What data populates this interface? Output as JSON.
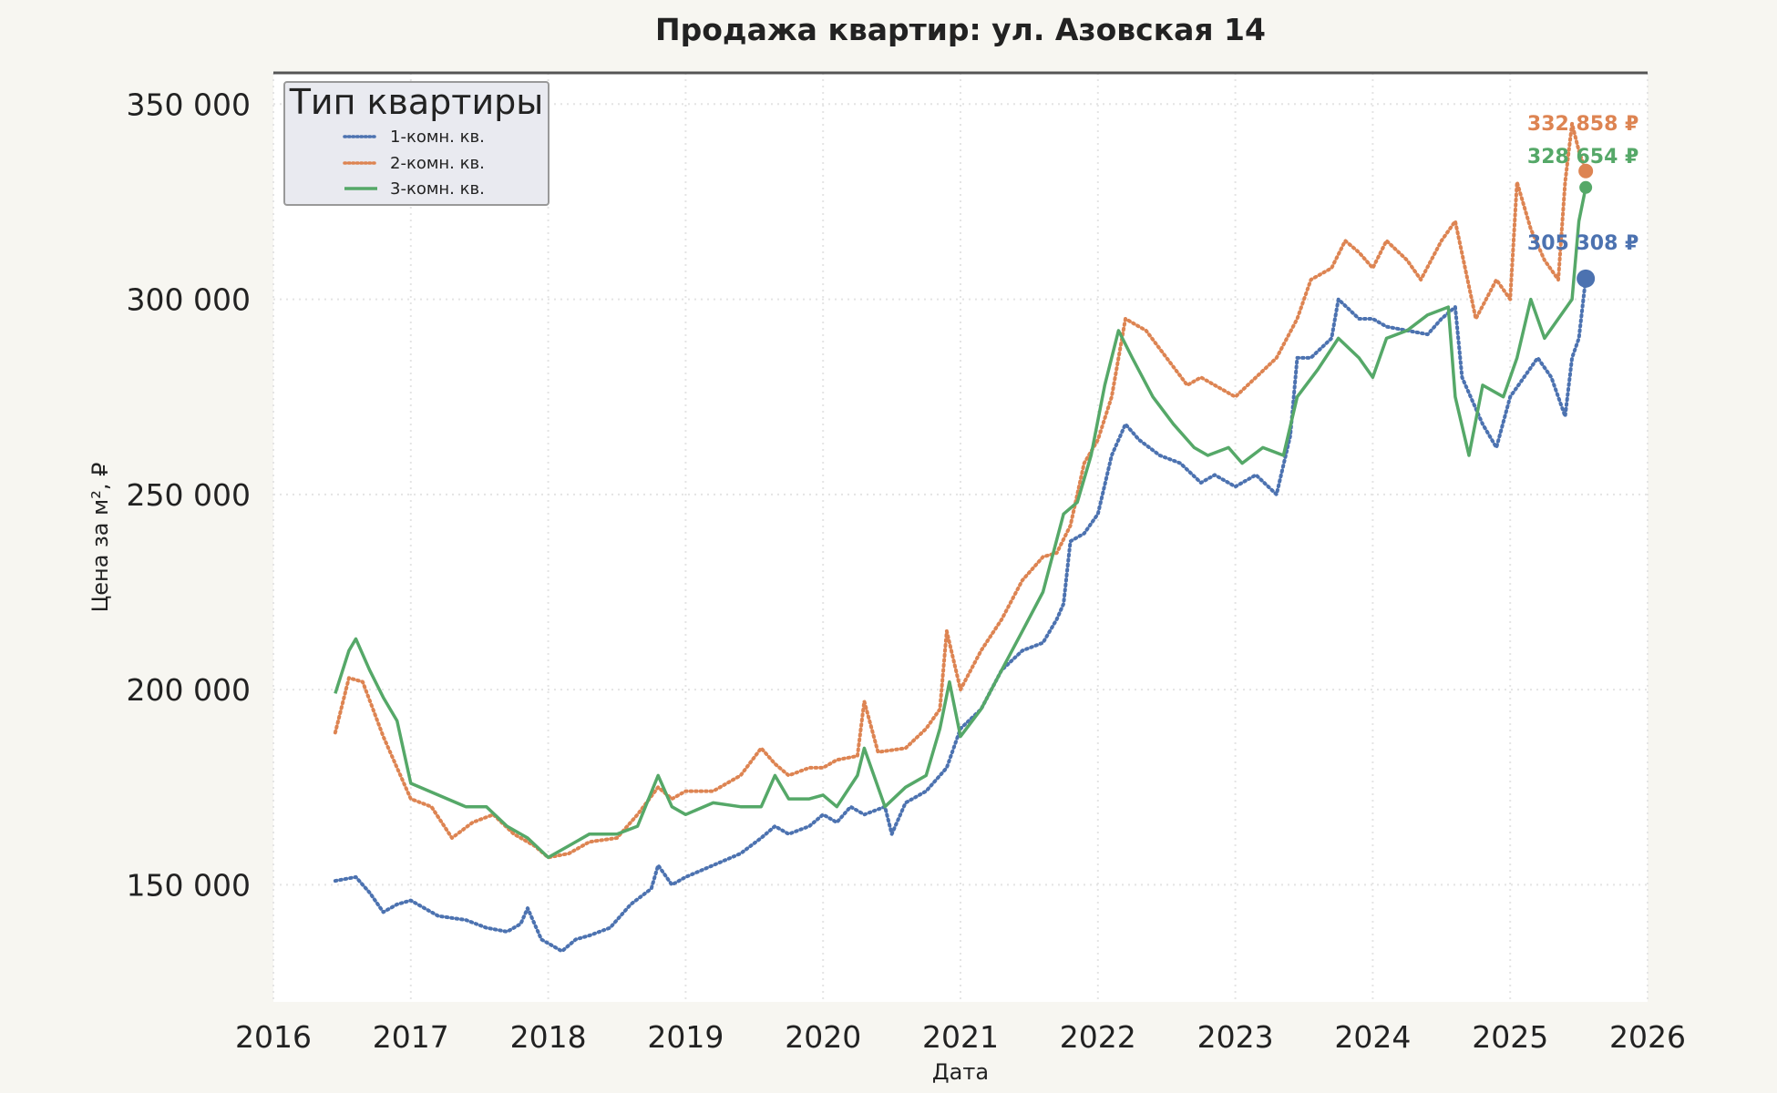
{
  "colors": {
    "background": "#f7f6f1",
    "plot_background": "#ffffff",
    "grid": "#e4e4e4",
    "top_rule": "#555555",
    "series_1": "#4c72b0",
    "series_2": "#dd8452",
    "series_3": "#55a868",
    "legend_bg": "#e9eaf0",
    "legend_border": "#999999"
  },
  "chart_data": {
    "type": "line",
    "title": "Продажа квартир: ул. Азовская 14",
    "xlabel": "Дата",
    "ylabel": "Цена за м², ₽",
    "xlim": [
      2016,
      2026
    ],
    "ylim": [
      120000,
      358000
    ],
    "x_ticks": [
      2016,
      2017,
      2018,
      2019,
      2020,
      2021,
      2022,
      2023,
      2024,
      2025,
      2026
    ],
    "x_tick_labels": [
      "2016",
      "2017",
      "2018",
      "2019",
      "2020",
      "2021",
      "2022",
      "2023",
      "2024",
      "2025",
      "2026"
    ],
    "y_ticks": [
      150000,
      200000,
      250000,
      300000,
      350000
    ],
    "y_tick_labels": [
      "150 000",
      "200 000",
      "250 000",
      "300 000",
      "350 000"
    ],
    "grid": true,
    "legend": {
      "title": "Тип квартиры",
      "placement": "top-left"
    },
    "series": [
      {
        "name": "1-комн. кв.",
        "style": "dotted",
        "color": "#4c72b0",
        "x": [
          2016.45,
          2016.6,
          2016.7,
          2016.8,
          2016.9,
          2017.0,
          2017.2,
          2017.4,
          2017.55,
          2017.7,
          2017.8,
          2017.85,
          2017.95,
          2018.1,
          2018.2,
          2018.3,
          2018.45,
          2018.6,
          2018.75,
          2018.8,
          2018.9,
          2019.0,
          2019.2,
          2019.4,
          2019.55,
          2019.65,
          2019.75,
          2019.9,
          2020.0,
          2020.1,
          2020.2,
          2020.3,
          2020.45,
          2020.5,
          2020.6,
          2020.75,
          2020.9,
          2021.0,
          2021.15,
          2021.3,
          2021.45,
          2021.6,
          2021.7,
          2021.75,
          2021.8,
          2021.9,
          2022.0,
          2022.1,
          2022.2,
          2022.3,
          2022.45,
          2022.6,
          2022.75,
          2022.85,
          2023.0,
          2023.15,
          2023.3,
          2023.4,
          2023.45,
          2023.55,
          2023.7,
          2023.75,
          2023.9,
          2024.0,
          2024.1,
          2024.25,
          2024.4,
          2024.5,
          2024.6,
          2024.65,
          2024.8,
          2024.9,
          2025.0,
          2025.1,
          2025.2,
          2025.3,
          2025.4,
          2025.45,
          2025.5,
          2025.55
        ],
        "y": [
          151000,
          152000,
          148000,
          143000,
          145000,
          146000,
          142000,
          141000,
          139000,
          138000,
          140000,
          144000,
          136000,
          133000,
          136000,
          137000,
          139000,
          145000,
          149000,
          155000,
          150000,
          152000,
          155000,
          158000,
          162000,
          165000,
          163000,
          165000,
          168000,
          166000,
          170000,
          168000,
          170000,
          163000,
          171000,
          174000,
          180000,
          190000,
          195000,
          205000,
          210000,
          212000,
          218000,
          222000,
          238000,
          240000,
          245000,
          260000,
          268000,
          264000,
          260000,
          258000,
          253000,
          255000,
          252000,
          255000,
          250000,
          265000,
          285000,
          285000,
          290000,
          300000,
          295000,
          295000,
          293000,
          292000,
          291000,
          295000,
          298000,
          280000,
          268000,
          262000,
          275000,
          280000,
          285000,
          280000,
          270000,
          285000,
          290000,
          305308
        ]
      },
      {
        "name": "2-комн. кв.",
        "style": "dotted",
        "color": "#dd8452",
        "x": [
          2016.45,
          2016.55,
          2016.65,
          2016.8,
          2016.9,
          2017.0,
          2017.15,
          2017.3,
          2017.45,
          2017.6,
          2017.75,
          2017.9,
          2018.0,
          2018.15,
          2018.3,
          2018.5,
          2018.65,
          2018.8,
          2018.9,
          2019.0,
          2019.2,
          2019.4,
          2019.55,
          2019.65,
          2019.75,
          2019.9,
          2020.0,
          2020.1,
          2020.25,
          2020.3,
          2020.4,
          2020.6,
          2020.75,
          2020.85,
          2020.9,
          2021.0,
          2021.15,
          2021.3,
          2021.45,
          2021.6,
          2021.7,
          2021.8,
          2021.9,
          2022.0,
          2022.1,
          2022.2,
          2022.35,
          2022.5,
          2022.65,
          2022.75,
          2022.85,
          2023.0,
          2023.15,
          2023.3,
          2023.45,
          2023.55,
          2023.7,
          2023.8,
          2023.9,
          2024.0,
          2024.1,
          2024.25,
          2024.35,
          2024.5,
          2024.6,
          2024.75,
          2024.9,
          2025.0,
          2025.05,
          2025.15,
          2025.25,
          2025.35,
          2025.4,
          2025.45,
          2025.5,
          2025.55
        ],
        "y": [
          189000,
          203000,
          202000,
          188000,
          180000,
          172000,
          170000,
          162000,
          166000,
          168000,
          163000,
          160000,
          157000,
          158000,
          161000,
          162000,
          168000,
          175000,
          172000,
          174000,
          174000,
          178000,
          185000,
          181000,
          178000,
          180000,
          180000,
          182000,
          183000,
          197000,
          184000,
          185000,
          190000,
          195000,
          215000,
          200000,
          210000,
          218000,
          228000,
          234000,
          235000,
          242000,
          258000,
          264000,
          275000,
          295000,
          292000,
          285000,
          278000,
          280000,
          278000,
          275000,
          280000,
          285000,
          295000,
          305000,
          308000,
          315000,
          312000,
          308000,
          315000,
          310000,
          305000,
          315000,
          320000,
          295000,
          305000,
          300000,
          330000,
          318000,
          310000,
          305000,
          330000,
          345000,
          338000,
          332858
        ]
      },
      {
        "name": "3-комн. кв.",
        "style": "solid",
        "color": "#55a868",
        "x": [
          2016.45,
          2016.55,
          2016.6,
          2016.7,
          2016.8,
          2016.9,
          2017.0,
          2017.2,
          2017.4,
          2017.55,
          2017.7,
          2017.85,
          2018.0,
          2018.15,
          2018.3,
          2018.5,
          2018.65,
          2018.8,
          2018.9,
          2019.0,
          2019.2,
          2019.4,
          2019.55,
          2019.65,
          2019.75,
          2019.9,
          2020.0,
          2020.1,
          2020.25,
          2020.3,
          2020.45,
          2020.6,
          2020.75,
          2020.85,
          2020.92,
          2021.0,
          2021.15,
          2021.3,
          2021.45,
          2021.6,
          2021.75,
          2021.85,
          2021.95,
          2022.05,
          2022.15,
          2022.25,
          2022.4,
          2022.55,
          2022.7,
          2022.8,
          2022.95,
          2023.05,
          2023.2,
          2023.35,
          2023.45,
          2023.6,
          2023.75,
          2023.9,
          2024.0,
          2024.1,
          2024.25,
          2024.4,
          2024.55,
          2024.6,
          2024.7,
          2024.8,
          2024.95,
          2025.05,
          2025.15,
          2025.25,
          2025.35,
          2025.45,
          2025.5,
          2025.55
        ],
        "y": [
          199000,
          210000,
          213000,
          205000,
          198000,
          192000,
          176000,
          173000,
          170000,
          170000,
          165000,
          162000,
          157000,
          160000,
          163000,
          163000,
          165000,
          178000,
          170000,
          168000,
          171000,
          170000,
          170000,
          178000,
          172000,
          172000,
          173000,
          170000,
          178000,
          185000,
          170000,
          175000,
          178000,
          190000,
          202000,
          188000,
          195000,
          205000,
          215000,
          225000,
          245000,
          248000,
          260000,
          278000,
          292000,
          285000,
          275000,
          268000,
          262000,
          260000,
          262000,
          258000,
          262000,
          260000,
          275000,
          282000,
          290000,
          285000,
          280000,
          290000,
          292000,
          296000,
          298000,
          275000,
          260000,
          278000,
          275000,
          285000,
          300000,
          290000,
          295000,
          300000,
          320000,
          328654
        ]
      }
    ],
    "end_labels": [
      {
        "series": "1-комн. кв.",
        "text": "305 308 ₽"
      },
      {
        "series": "2-комн. кв.",
        "text": "332 858 ₽"
      },
      {
        "series": "3-комн. кв.",
        "text": "328 654 ₽"
      }
    ]
  }
}
